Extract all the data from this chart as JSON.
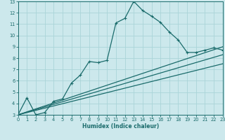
{
  "xlabel": "Humidex (Indice chaleur)",
  "bg_color": "#cce8ec",
  "line_color": "#1a6b6b",
  "grid_color": "#aad4d8",
  "xlim": [
    0,
    23
  ],
  "ylim": [
    3,
    13
  ],
  "xticks": [
    0,
    1,
    2,
    3,
    4,
    5,
    6,
    7,
    8,
    9,
    10,
    11,
    12,
    13,
    14,
    15,
    16,
    17,
    18,
    19,
    20,
    21,
    22,
    23
  ],
  "yticks": [
    3,
    4,
    5,
    6,
    7,
    8,
    9,
    10,
    11,
    12,
    13
  ],
  "main_line": {
    "x": [
      0,
      1,
      2,
      3,
      4,
      5,
      6,
      7,
      8,
      9,
      10,
      11,
      12,
      13,
      14,
      15,
      16,
      17,
      18,
      19,
      20,
      21,
      22,
      23
    ],
    "y": [
      3.0,
      4.5,
      3.0,
      3.2,
      4.2,
      4.4,
      5.8,
      6.5,
      7.7,
      7.6,
      7.8,
      11.1,
      11.5,
      13.0,
      12.2,
      11.7,
      11.15,
      10.3,
      9.6,
      8.5,
      8.5,
      8.7,
      8.9,
      8.7
    ]
  },
  "straight_lines": [
    {
      "x": [
        0,
        23
      ],
      "y": [
        3.0,
        9.0
      ]
    },
    {
      "x": [
        0,
        23
      ],
      "y": [
        3.0,
        8.3
      ]
    },
    {
      "x": [
        0,
        23
      ],
      "y": [
        3.0,
        7.5
      ]
    }
  ],
  "xlabel_fontsize": 5.5,
  "tick_fontsize": 4.8,
  "linewidth": 0.9,
  "markersize": 3.0,
  "markeredgewidth": 0.8
}
